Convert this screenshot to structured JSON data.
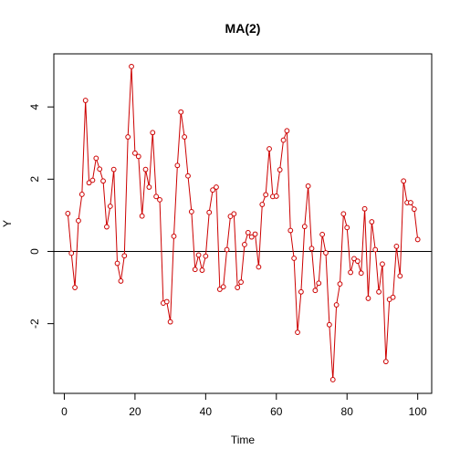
{
  "chart_data": {
    "type": "line",
    "title": "MA(2)",
    "xlabel": "Time",
    "ylabel": "Y",
    "xlim": [
      -2.96,
      103.96
    ],
    "ylim": [
      -3.93,
      5.47
    ],
    "x_ticks": [
      0,
      20,
      40,
      60,
      80,
      100
    ],
    "y_ticks": [
      -2,
      0,
      2,
      4
    ],
    "reference_lines": [
      {
        "axis": "y",
        "value": 0,
        "color": "#000000"
      }
    ],
    "grid": false,
    "legend": "none",
    "series": [
      {
        "color": "#cc0000",
        "markers": "open-circle",
        "x": [
          1,
          2,
          3,
          4,
          5,
          6,
          7,
          8,
          9,
          10,
          11,
          12,
          13,
          14,
          15,
          16,
          17,
          18,
          19,
          20,
          21,
          22,
          23,
          24,
          25,
          26,
          27,
          28,
          29,
          30,
          31,
          32,
          33,
          34,
          35,
          36,
          37,
          38,
          39,
          40,
          41,
          42,
          43,
          44,
          45,
          46,
          47,
          48,
          49,
          50,
          51,
          52,
          53,
          54,
          55,
          56,
          57,
          58,
          59,
          60,
          61,
          62,
          63,
          64,
          65,
          66,
          67,
          68,
          69,
          70,
          71,
          72,
          73,
          74,
          75,
          76,
          77,
          78,
          79,
          80,
          81,
          82,
          83,
          84,
          85,
          86,
          87,
          88,
          89,
          90,
          91,
          92,
          93,
          94,
          95,
          96,
          97,
          98,
          99,
          100
        ],
        "values": [
          1.05,
          -0.05,
          -1.0,
          0.85,
          1.58,
          4.18,
          1.9,
          1.97,
          2.58,
          2.28,
          1.95,
          0.68,
          1.25,
          2.27,
          -0.33,
          -0.82,
          -0.12,
          3.17,
          5.12,
          2.72,
          2.63,
          0.98,
          2.27,
          1.78,
          3.29,
          1.52,
          1.43,
          -1.43,
          -1.39,
          -1.95,
          0.42,
          2.38,
          3.86,
          3.17,
          2.09,
          1.1,
          -0.5,
          -0.1,
          -0.52,
          -0.13,
          1.08,
          1.7,
          1.78,
          -1.05,
          -0.98,
          0.05,
          0.97,
          1.04,
          -1.0,
          -0.85,
          0.19,
          0.52,
          0.4,
          0.48,
          -0.43,
          1.3,
          1.57,
          2.84,
          1.52,
          1.53,
          2.26,
          3.08,
          3.34,
          0.58,
          -0.19,
          -2.24,
          -1.12,
          0.69,
          1.81,
          0.08,
          -1.08,
          -0.88,
          0.47,
          -0.04,
          -2.03,
          -3.55,
          -1.48,
          -0.9,
          1.04,
          0.66,
          -0.58,
          -0.2,
          -0.27,
          -0.6,
          1.18,
          -1.3,
          0.82,
          0.05,
          -1.12,
          -0.35,
          -3.05,
          -1.33,
          -1.27,
          0.14,
          -0.68,
          1.95,
          1.35,
          1.35,
          1.17,
          0.33
        ]
      }
    ]
  }
}
